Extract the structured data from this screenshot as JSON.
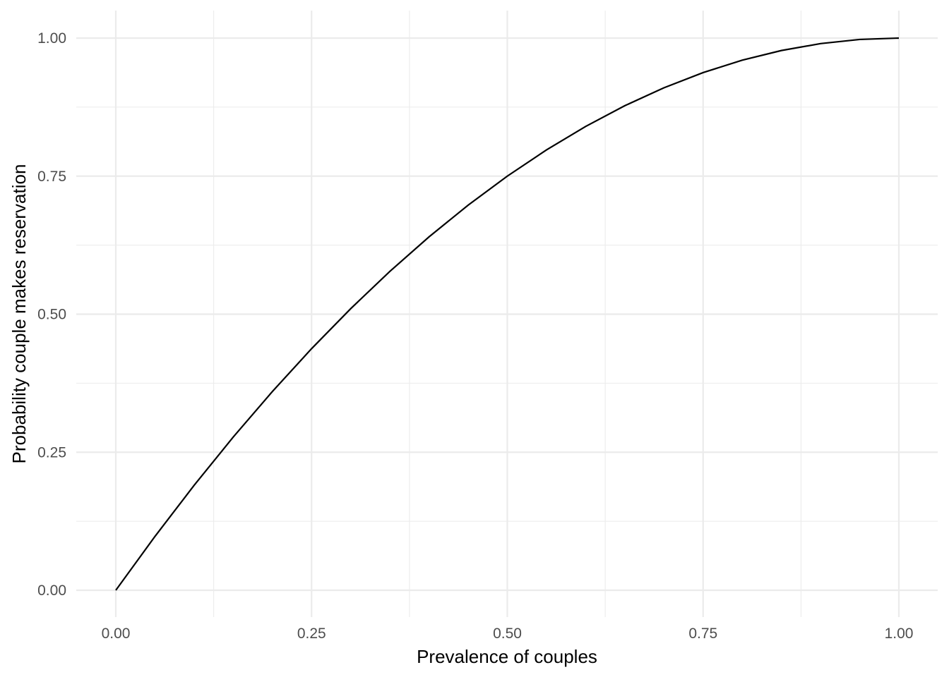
{
  "chart_data": {
    "type": "line",
    "xlabel": "Prevalence of couples",
    "ylabel": "Probability couple makes reservation",
    "xlim": [
      0,
      1
    ],
    "ylim": [
      0,
      1
    ],
    "x_ticks": [
      "0.00",
      "0.25",
      "0.50",
      "0.75",
      "1.00"
    ],
    "y_ticks": [
      "0.00",
      "0.25",
      "0.50",
      "0.75",
      "1.00"
    ],
    "grid": true,
    "series": [
      {
        "color": "#000000",
        "x": [
          0,
          0.05,
          0.1,
          0.15,
          0.2,
          0.25,
          0.3,
          0.35,
          0.4,
          0.45,
          0.5,
          0.55,
          0.6,
          0.65,
          0.7,
          0.75,
          0.8,
          0.85,
          0.9,
          0.95,
          1.0
        ],
        "y": [
          0,
          0.0975,
          0.19,
          0.2775,
          0.36,
          0.4375,
          0.51,
          0.5775,
          0.64,
          0.6975,
          0.75,
          0.7975,
          0.84,
          0.8775,
          0.91,
          0.9375,
          0.96,
          0.9775,
          0.99,
          0.9975,
          1.0
        ]
      }
    ]
  }
}
